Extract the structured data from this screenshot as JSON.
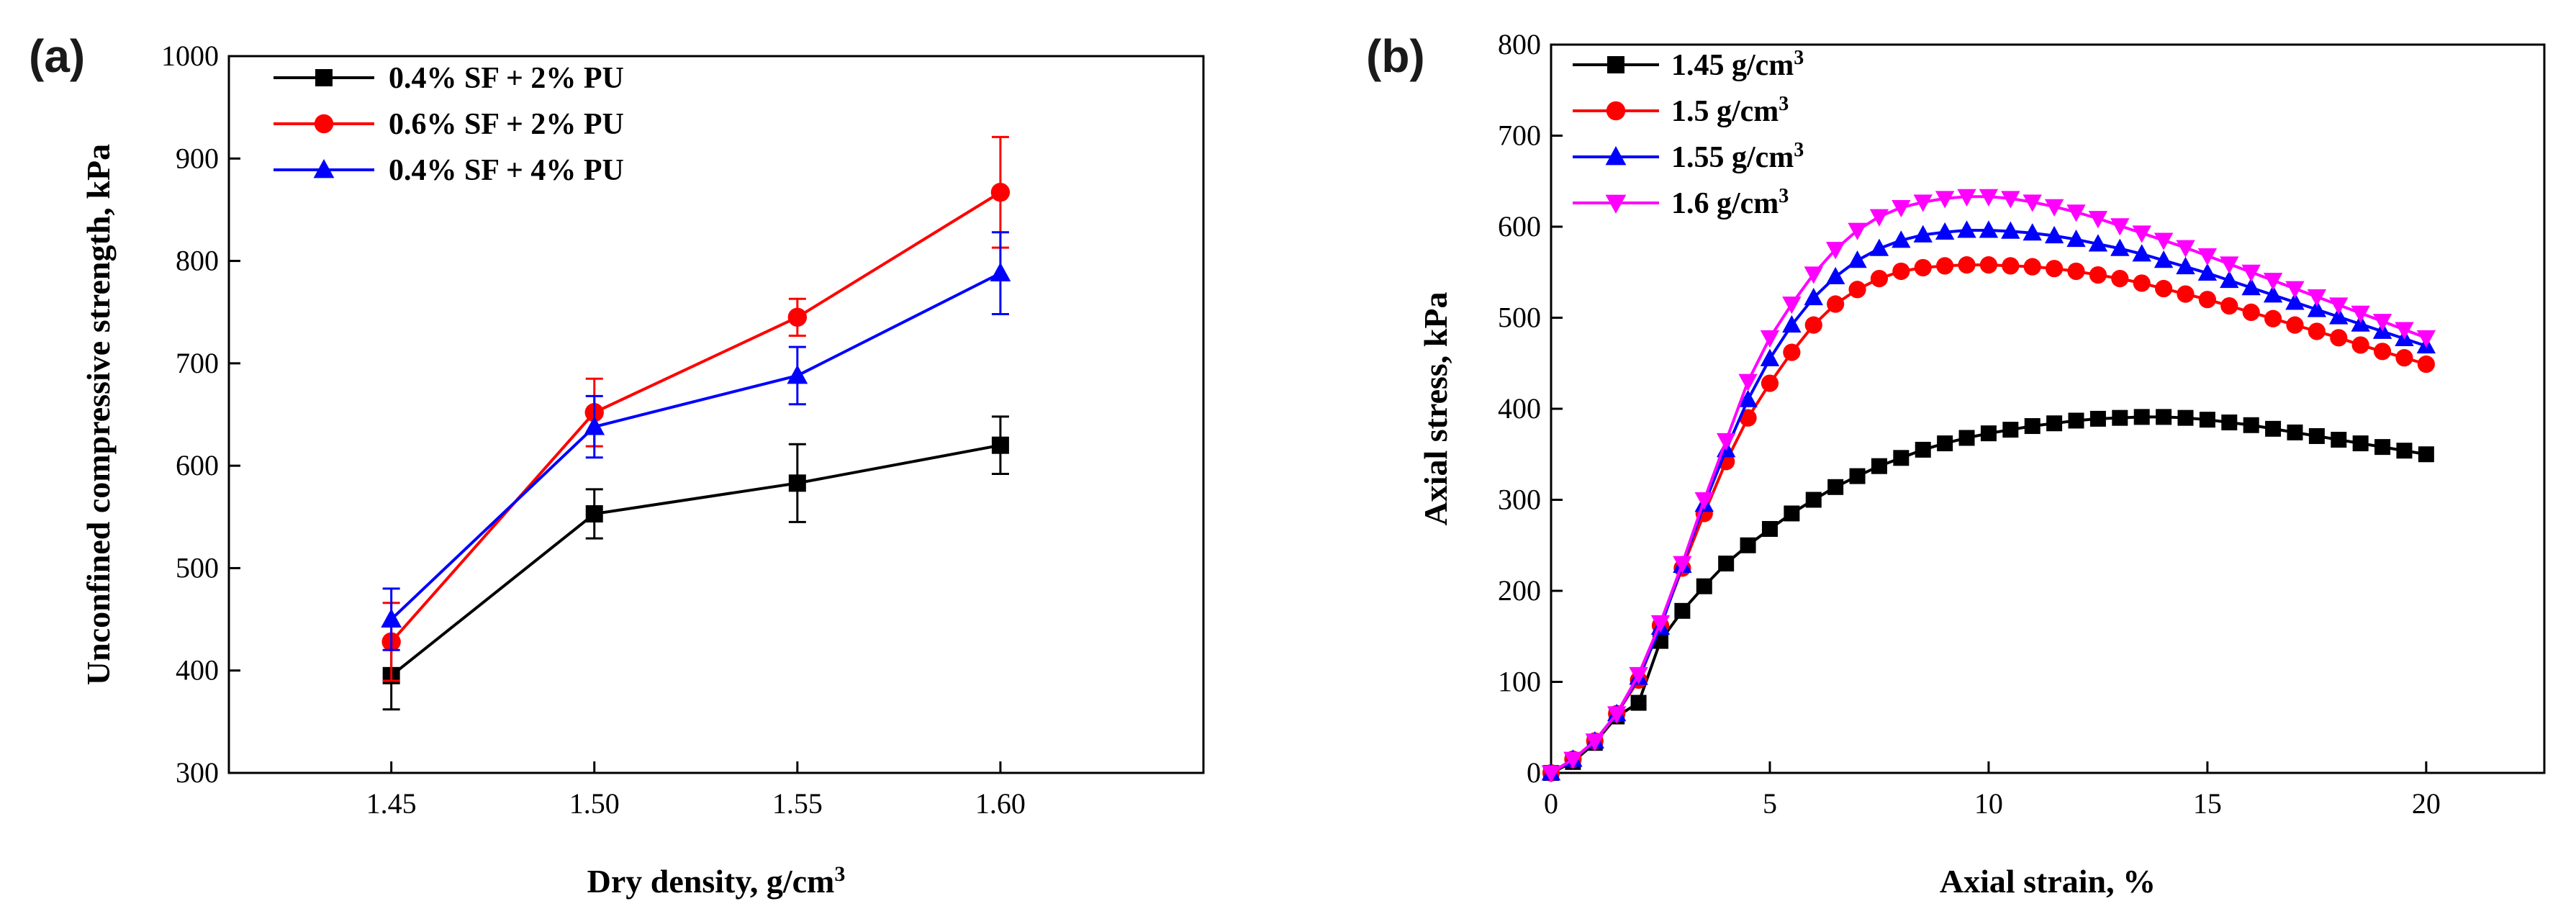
{
  "chart_data": [
    {
      "panel": "(a)",
      "type": "line",
      "xlabel": "Dry density, g/cm",
      "xlabel_sup": "3",
      "ylabel": "Unconfined compressive strength, kPa",
      "x": [
        1.45,
        1.5,
        1.55,
        1.6
      ],
      "xticks": [
        "1.45",
        "1.50",
        "1.55",
        "1.60"
      ],
      "xlim": [
        1.41,
        1.65
      ],
      "ylim": [
        300,
        1000
      ],
      "yticks": [
        "300",
        "400",
        "500",
        "600",
        "700",
        "800",
        "900",
        "1000"
      ],
      "legend_position": "top-left",
      "grid": false,
      "series": [
        {
          "name": "0.4% SF + 2% PU",
          "color": "#000000",
          "marker": "square",
          "values": [
            395,
            553,
            583,
            620
          ],
          "errors": [
            33,
            24,
            38,
            28
          ]
        },
        {
          "name": "0.6% SF + 2% PU",
          "color": "#ff0000",
          "marker": "circle",
          "values": [
            428,
            652,
            745,
            867
          ],
          "errors": [
            38,
            33,
            18,
            54
          ]
        },
        {
          "name": "0.4% SF + 4% PU",
          "color": "#0000ff",
          "marker": "triangle-up",
          "values": [
            450,
            638,
            688,
            788
          ],
          "errors": [
            30,
            30,
            28,
            40
          ]
        }
      ]
    },
    {
      "panel": "(b)",
      "type": "line",
      "xlabel": "Axial strain, %",
      "ylabel": "Axial stress, kPa",
      "xlim": [
        0,
        22.7
      ],
      "ylim": [
        0,
        800
      ],
      "xticks": [
        "0",
        "5",
        "10",
        "15",
        "20"
      ],
      "yticks": [
        "0",
        "100",
        "200",
        "300",
        "400",
        "500",
        "600",
        "700",
        "800"
      ],
      "legend_position": "top-left",
      "grid": false,
      "x": [
        0,
        0.5,
        1,
        1.5,
        2,
        2.5,
        3,
        3.5,
        4,
        4.5,
        5,
        5.5,
        6,
        6.5,
        7,
        7.5,
        8,
        8.5,
        9,
        9.5,
        10,
        10.5,
        11,
        11.5,
        12,
        12.5,
        13,
        13.5,
        14,
        14.5,
        15,
        15.5,
        16,
        16.5,
        17,
        17.5,
        18,
        18.5,
        19,
        19.5,
        20
      ],
      "series": [
        {
          "name": "1.45 g/cm",
          "name_sup": "3",
          "color": "#000000",
          "marker": "square",
          "values": [
            0,
            12,
            33,
            62,
            77,
            145,
            178,
            205,
            230,
            250,
            268,
            285,
            300,
            314,
            326,
            337,
            346,
            355,
            362,
            368,
            373,
            377,
            381,
            384,
            387,
            389,
            390,
            391,
            391,
            390,
            388,
            385,
            382,
            378,
            374,
            370,
            366,
            362,
            358,
            354,
            350
          ]
        },
        {
          "name": "1.5 g/cm",
          "name_sup": "3",
          "color": "#ff0000",
          "marker": "circle",
          "values": [
            0,
            15,
            35,
            65,
            102,
            162,
            225,
            285,
            342,
            390,
            428,
            462,
            492,
            515,
            531,
            543,
            551,
            555,
            557,
            558,
            558,
            557,
            556,
            554,
            551,
            547,
            543,
            538,
            532,
            526,
            520,
            513,
            506,
            499,
            492,
            485,
            478,
            470,
            463,
            456,
            449
          ]
        },
        {
          "name": "1.55 g/cm",
          "name_sup": "3",
          "color": "#0000ff",
          "marker": "triangle-up",
          "values": [
            0,
            15,
            35,
            65,
            105,
            160,
            228,
            295,
            355,
            410,
            455,
            492,
            522,
            545,
            563,
            576,
            585,
            591,
            594,
            596,
            596,
            595,
            593,
            590,
            586,
            581,
            576,
            570,
            563,
            556,
            549,
            541,
            533,
            525,
            517,
            509,
            501,
            493,
            485,
            477,
            469
          ]
        },
        {
          "name": "1.6 g/cm",
          "name_sup": "3",
          "color": "#ff00ff",
          "marker": "triangle-down",
          "values": [
            0,
            15,
            35,
            65,
            108,
            165,
            230,
            300,
            365,
            430,
            478,
            515,
            548,
            575,
            596,
            611,
            621,
            627,
            631,
            633,
            633,
            631,
            627,
            622,
            616,
            609,
            601,
            593,
            585,
            577,
            568,
            559,
            550,
            541,
            532,
            523,
            514,
            505,
            496,
            487,
            478
          ]
        }
      ]
    }
  ]
}
